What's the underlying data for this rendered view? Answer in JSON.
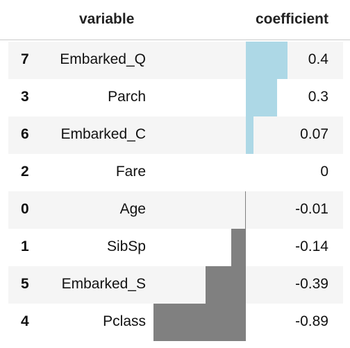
{
  "header": {
    "variable_label": "variable",
    "coefficient_label": "coefficient"
  },
  "colors": {
    "positive_bar": "#add8e6",
    "negative_bar": "#808080",
    "stripe": "#f5f5f5"
  },
  "chart_data": {
    "type": "table",
    "columns": [
      "",
      "variable",
      "coefficient"
    ],
    "rows": [
      {
        "index": "7",
        "variable": "Embarked_Q",
        "coefficient": "0.4",
        "value": 0.4
      },
      {
        "index": "3",
        "variable": "Parch",
        "coefficient": "0.3",
        "value": 0.3
      },
      {
        "index": "6",
        "variable": "Embarked_C",
        "coefficient": "0.07",
        "value": 0.07
      },
      {
        "index": "2",
        "variable": "Fare",
        "coefficient": "0",
        "value": 0
      },
      {
        "index": "0",
        "variable": "Age",
        "coefficient": "-0.01",
        "value": -0.01
      },
      {
        "index": "1",
        "variable": "SibSp",
        "coefficient": "-0.14",
        "value": -0.14
      },
      {
        "index": "5",
        "variable": "Embarked_S",
        "coefficient": "-0.39",
        "value": -0.39
      },
      {
        "index": "4",
        "variable": "Pclass",
        "coefficient": "-0.89",
        "value": -0.89
      }
    ],
    "bar_range": [
      -0.89,
      0.4
    ]
  }
}
